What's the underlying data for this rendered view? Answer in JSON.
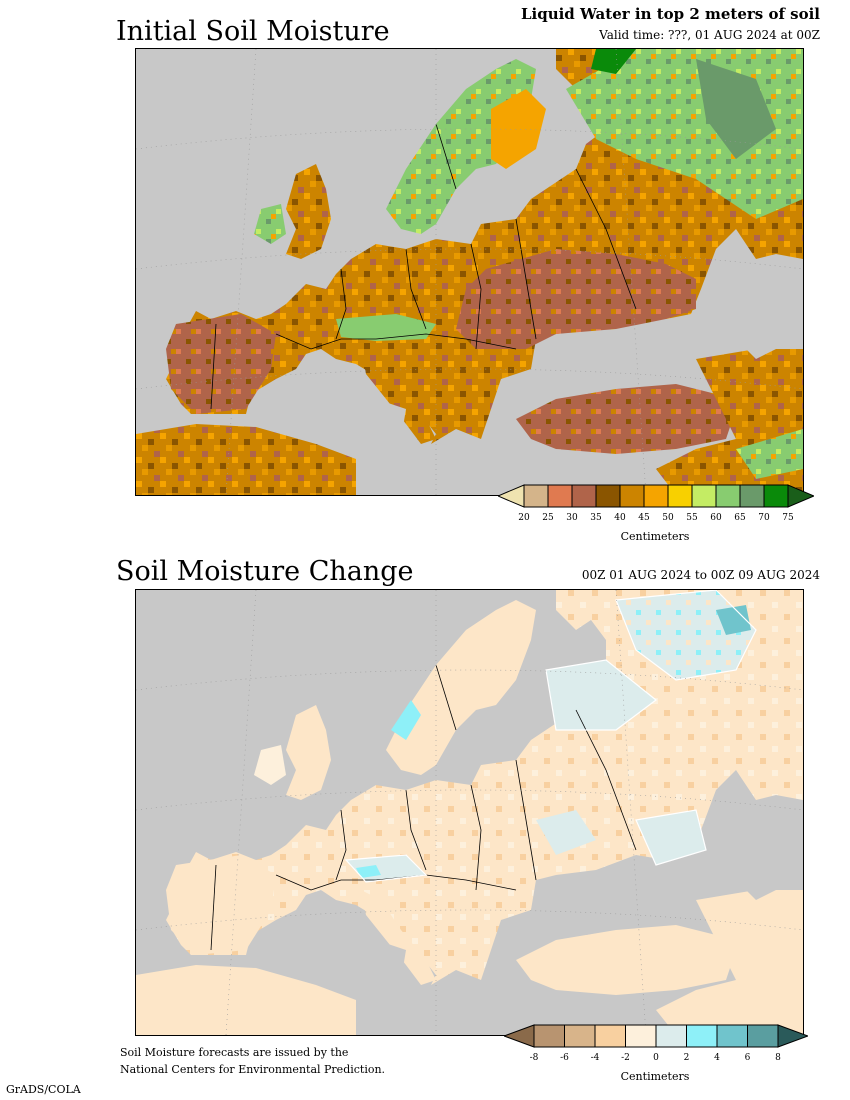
{
  "panel1": {
    "title": "Initial Soil Moisture",
    "header_right": "Liquid Water in top 2 meters of soil",
    "valid_time": "Valid time: ???, 01 AUG 2024 at 00Z",
    "colorbar": {
      "unit_label": "Centimeters",
      "ticks": [
        "20",
        "25",
        "30",
        "35",
        "40",
        "45",
        "50",
        "55",
        "60",
        "65",
        "70",
        "75"
      ],
      "colors": [
        "#efe3b0",
        "#d4b48a",
        "#e07a50",
        "#b0644a",
        "#8a5500",
        "#cc8400",
        "#f5a400",
        "#f8d000",
        "#c4ec64",
        "#88cc70",
        "#6a9a6a",
        "#0a8a0a",
        "#1a5e1a"
      ]
    }
  },
  "panel2": {
    "title": "Soil Moisture Change",
    "period": "00Z 01 AUG 2024 to 00Z 09 AUG 2024",
    "colorbar": {
      "unit_label": "Centimeters",
      "ticks": [
        "-8",
        "-6",
        "-4",
        "-2",
        "0",
        "2",
        "4",
        "6",
        "8"
      ],
      "colors": [
        "#8a6a4a",
        "#b89470",
        "#d8b48a",
        "#f8d0a0",
        "#fdf0dc",
        "#dcecec",
        "#8ef0f8",
        "#70c4cc",
        "#5a9ea0",
        "#2a5a5a"
      ]
    }
  },
  "footer": {
    "note_line1": "Soil Moisture forecasts are issued by the",
    "note_line2": "National Centers for Environmental Prediction.",
    "credit": "GrADS/COLA"
  },
  "colors": {
    "sea": "#c8c8c8",
    "land_dry_base": "#cc8400",
    "land_change_base": "#fde6c8"
  }
}
